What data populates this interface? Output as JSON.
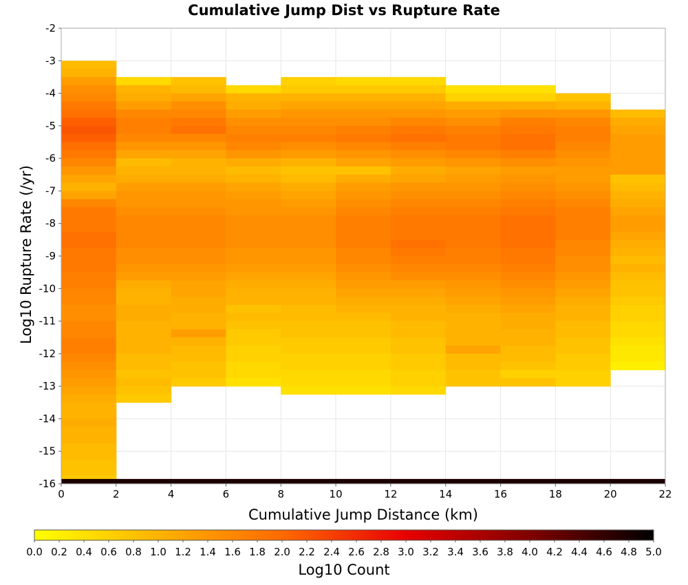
{
  "chart_data": {
    "type": "heatmap",
    "title": "Cumulative Jump Dist vs Rupture Rate",
    "xlabel": "Cumulative Jump Distance (km)",
    "ylabel": "Log10 Rupture Rate (/yr)",
    "xlim": [
      0,
      22
    ],
    "ylim": [
      -16,
      -2
    ],
    "x_ticks": [
      "0",
      "2",
      "4",
      "6",
      "8",
      "10",
      "12",
      "14",
      "16",
      "18",
      "20",
      "22"
    ],
    "y_ticks": [
      "-2",
      "-3",
      "-4",
      "-5",
      "-6",
      "-7",
      "-8",
      "-9",
      "-10",
      "-11",
      "-12",
      "-13",
      "-14",
      "-15",
      "-16"
    ],
    "x_bin_edges": [
      0,
      2,
      4,
      6,
      8,
      10,
      12,
      14,
      16,
      18,
      20,
      22
    ],
    "y_bin_size": 0.25,
    "colorbar": {
      "label": "Log10 Count",
      "range": [
        0.0,
        5.0
      ],
      "tick_labels": [
        "0.0",
        "0.2",
        "0.4",
        "0.6",
        "0.8",
        "1.0",
        "1.2",
        "1.4",
        "1.6",
        "1.8",
        "2.0",
        "2.2",
        "2.4",
        "2.6",
        "2.8",
        "3.0",
        "3.2",
        "3.4",
        "3.6",
        "3.8",
        "4.0",
        "4.2",
        "4.4",
        "4.6",
        "4.8",
        "5.0"
      ],
      "colors": [
        "#ffff00",
        "#ffb300",
        "#ff6a00",
        "#e80000",
        "#800000",
        "#000000"
      ]
    },
    "columns": [
      {
        "x_range": [
          0,
          2
        ],
        "top": -3.0,
        "values_top_to_bottom": [
          0.9,
          1.0,
          1.3,
          1.5,
          1.6,
          1.8,
          1.9,
          2.1,
          2.2,
          2.1,
          1.9,
          1.8,
          1.6,
          1.4,
          1.2,
          1.0,
          1.2,
          1.6,
          1.8,
          1.8,
          1.8,
          1.9,
          1.9,
          1.8,
          1.8,
          1.8,
          1.7,
          1.7,
          1.6,
          1.6,
          1.5,
          1.5,
          1.6,
          1.6,
          1.7,
          1.7,
          1.6,
          1.5,
          1.4,
          1.3,
          1.2,
          1.1,
          1.0,
          1.0,
          1.1,
          1.0,
          1.0,
          0.9,
          0.9,
          0.8,
          0.8,
          0.7
        ]
      },
      {
        "x_range": [
          2,
          4
        ],
        "top": -3.5,
        "values_top_to_bottom": [
          0.5,
          1.0,
          1.1,
          1.3,
          1.6,
          1.7,
          1.7,
          1.6,
          1.4,
          1.2,
          0.9,
          1.0,
          1.1,
          1.3,
          1.4,
          1.4,
          1.5,
          1.6,
          1.6,
          1.6,
          1.6,
          1.5,
          1.5,
          1.4,
          1.3,
          1.1,
          1.0,
          1.0,
          1.1,
          1.1,
          1.0,
          1.0,
          1.0,
          1.0,
          0.9,
          0.9,
          0.8,
          0.9,
          0.8,
          0.7
        ]
      },
      {
        "x_range": [
          4,
          6
        ],
        "top": -3.5,
        "values_top_to_bottom": [
          0.8,
          0.9,
          1.2,
          1.5,
          1.6,
          1.8,
          1.9,
          1.6,
          1.4,
          1.2,
          1.0,
          1.0,
          1.1,
          1.3,
          1.4,
          1.4,
          1.5,
          1.6,
          1.6,
          1.6,
          1.6,
          1.5,
          1.5,
          1.4,
          1.3,
          1.2,
          1.2,
          1.1,
          1.1,
          1.0,
          1.0,
          1.3,
          1.0,
          0.9,
          0.9,
          0.8,
          0.8,
          0.7
        ]
      },
      {
        "x_range": [
          6,
          8
        ],
        "top": -3.75,
        "values_top_to_bottom": [
          0.5,
          1.0,
          1.1,
          1.3,
          1.5,
          1.6,
          1.7,
          1.6,
          1.4,
          1.1,
          0.9,
          1.0,
          1.2,
          1.3,
          1.4,
          1.4,
          1.5,
          1.5,
          1.5,
          1.5,
          1.4,
          1.4,
          1.3,
          1.2,
          1.1,
          1.0,
          1.0,
          0.8,
          0.9,
          0.8,
          0.7,
          0.7,
          0.6,
          0.6,
          0.5,
          0.5,
          0.4
        ]
      },
      {
        "x_range": [
          8,
          10
        ],
        "top": -3.5,
        "values_top_to_bottom": [
          0.6,
          0.7,
          1.0,
          1.2,
          1.4,
          1.5,
          1.6,
          1.7,
          1.5,
          1.3,
          1.0,
          0.8,
          0.9,
          1.1,
          1.2,
          1.3,
          1.4,
          1.5,
          1.5,
          1.5,
          1.5,
          1.4,
          1.4,
          1.3,
          1.2,
          1.1,
          1.0,
          1.0,
          0.9,
          0.9,
          0.8,
          0.8,
          0.7,
          0.7,
          0.6,
          0.6,
          0.5,
          0.5,
          0.4
        ]
      },
      {
        "x_range": [
          10,
          12
        ],
        "top": -3.5,
        "values_top_to_bottom": [
          0.5,
          0.7,
          1.0,
          1.2,
          1.4,
          1.5,
          1.7,
          1.8,
          1.6,
          1.4,
          1.2,
          0.8,
          1.1,
          1.3,
          1.4,
          1.5,
          1.6,
          1.7,
          1.7,
          1.7,
          1.7,
          1.6,
          1.6,
          1.5,
          1.4,
          1.3,
          1.2,
          1.1,
          1.0,
          0.9,
          0.8,
          0.8,
          0.7,
          0.7,
          0.6,
          0.6,
          0.5,
          0.5,
          0.4
        ]
      },
      {
        "x_range": [
          12,
          14
        ],
        "top": -3.5,
        "values_top_to_bottom": [
          0.5,
          0.7,
          1.0,
          1.2,
          1.4,
          1.6,
          1.8,
          1.9,
          1.7,
          1.5,
          1.3,
          1.1,
          1.2,
          1.4,
          1.5,
          1.6,
          1.7,
          1.8,
          1.8,
          1.8,
          1.9,
          1.8,
          1.7,
          1.6,
          1.5,
          1.3,
          1.2,
          1.1,
          1.0,
          1.0,
          0.9,
          0.9,
          0.8,
          0.8,
          0.7,
          0.7,
          0.6,
          0.6,
          0.5
        ]
      },
      {
        "x_range": [
          14,
          16
        ],
        "top": -3.75,
        "values_top_to_bottom": [
          0.4,
          0.6,
          1.1,
          1.3,
          1.5,
          1.7,
          1.8,
          1.8,
          1.6,
          1.4,
          1.2,
          1.3,
          1.4,
          1.5,
          1.6,
          1.7,
          1.8,
          1.8,
          1.8,
          1.8,
          1.7,
          1.7,
          1.6,
          1.5,
          1.4,
          1.3,
          1.2,
          1.1,
          1.0,
          1.0,
          1.0,
          1.0,
          1.2,
          0.9,
          0.9,
          0.8,
          0.8
        ]
      },
      {
        "x_range": [
          16,
          18
        ],
        "top": -3.75,
        "values_top_to_bottom": [
          0.4,
          0.6,
          1.1,
          1.4,
          1.7,
          1.8,
          1.9,
          1.9,
          1.7,
          1.5,
          1.3,
          1.4,
          1.5,
          1.6,
          1.7,
          1.8,
          1.9,
          1.9,
          1.9,
          1.9,
          1.8,
          1.8,
          1.7,
          1.6,
          1.5,
          1.4,
          1.3,
          1.2,
          1.1,
          1.1,
          1.0,
          1.0,
          0.9,
          0.9,
          0.8,
          0.6,
          0.8
        ]
      },
      {
        "x_range": [
          18,
          20
        ],
        "top": -4.0,
        "values_top_to_bottom": [
          0.8,
          1.0,
          1.4,
          1.6,
          1.7,
          1.7,
          1.6,
          1.5,
          1.4,
          1.3,
          1.3,
          1.4,
          1.5,
          1.6,
          1.7,
          1.7,
          1.7,
          1.7,
          1.6,
          1.6,
          1.5,
          1.5,
          1.4,
          1.3,
          1.2,
          1.1,
          1.0,
          1.0,
          0.9,
          0.9,
          0.8,
          0.8,
          0.7,
          0.7,
          0.6,
          0.6
        ]
      },
      {
        "x_range": [
          20,
          22
        ],
        "top": -4.5,
        "values_top_to_bottom": [
          0.9,
          1.1,
          1.2,
          1.3,
          1.3,
          1.3,
          1.3,
          1.3,
          0.8,
          0.9,
          1.0,
          1.1,
          1.2,
          1.3,
          1.3,
          1.2,
          1.1,
          1.0,
          0.9,
          1.0,
          0.9,
          0.8,
          0.8,
          0.7,
          0.6,
          0.6,
          0.5,
          0.5,
          0.4,
          0.3,
          0.3,
          0.2
        ]
      }
    ],
    "bottom_row": {
      "y_range": [
        -16.0,
        -15.85
      ],
      "value": 4.8
    }
  }
}
